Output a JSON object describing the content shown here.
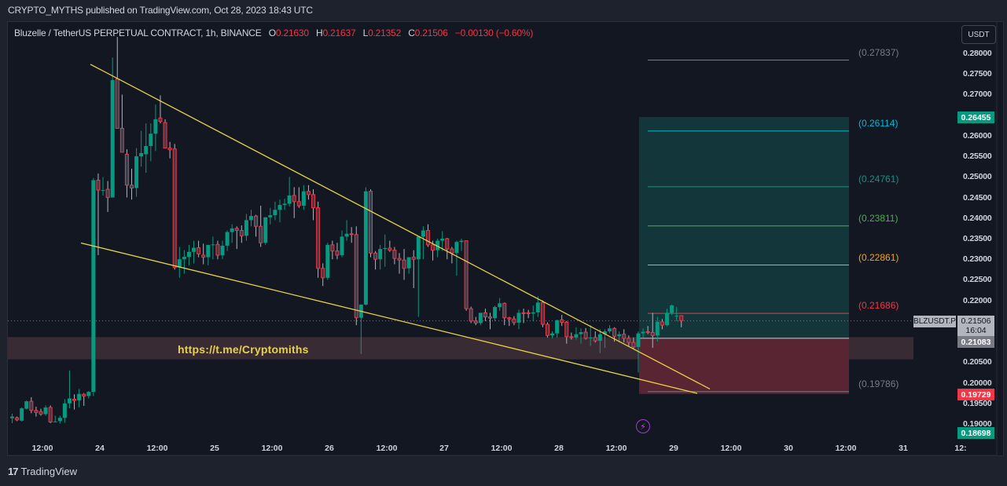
{
  "header": {
    "published": "CRYPTO_MYTHS published on TradingView.com, Oct 28, 2023 18:43 UTC"
  },
  "legend": {
    "symbol": "Bluzelle / TetherUS PERPETUAL CONTRACT, 1h, BINANCE",
    "o_label": "O",
    "o": "0.21630",
    "h_label": "H",
    "h": "0.21637",
    "l_label": "L",
    "l": "0.21352",
    "c_label": "C",
    "c": "0.21506",
    "change": "−0.00130 (−0.60%)"
  },
  "currency_button": "USDT",
  "annotation_url": "https://t.me/Cryptomiths",
  "price_badges": {
    "symbol_tag": "BLZUSDT.P",
    "last_price": "0.21506",
    "countdown": "16:04",
    "target_top": "0.26455",
    "entry": "0.21083",
    "stop": "0.19729",
    "low": "0.18698"
  },
  "footer": {
    "brand": "TradingView",
    "logo_mark": "17"
  },
  "colors": {
    "background": "#131722",
    "up": "#089981",
    "down": "#f23645",
    "trendline": "#e8d24a",
    "profit_zone": "#12363a",
    "loss_zone": "#5a2532",
    "support_zone": "#392b33"
  },
  "chart_data": {
    "type": "candlestick",
    "title": "Bluzelle / TetherUS PERPETUAL CONTRACT, 1h, BINANCE",
    "xlabel": "",
    "ylabel": "USDT",
    "ylim": [
      0.186,
      0.284
    ],
    "y_ticks": [
      "0.28000",
      "0.27500",
      "0.27000",
      "0.26500",
      "0.26000",
      "0.25500",
      "0.25000",
      "0.24500",
      "0.24000",
      "0.23500",
      "0.23000",
      "0.22500",
      "0.22000",
      "0.21500",
      "0.21000",
      "0.20500",
      "0.20000",
      "0.19500",
      "0.19000"
    ],
    "y_ticks_visible": [
      "0.28000",
      "0.27500",
      "0.27000",
      "0.26000",
      "0.25500",
      "0.25000",
      "0.24500",
      "0.24000",
      "0.23500",
      "0.23000",
      "0.22500",
      "0.22000",
      "0.20500",
      "0.20000",
      "0.19500",
      "0.19000"
    ],
    "x_ticks": [
      "12:00",
      "24",
      "12:00",
      "25",
      "12:00",
      "26",
      "12:00",
      "27",
      "12:00",
      "28",
      "12:00",
      "29",
      "12:00",
      "30",
      "12:00",
      "31",
      "12:"
    ],
    "fib_levels": [
      {
        "label": "(0.27837)",
        "value": 0.27837,
        "color": "#787b86"
      },
      {
        "label": "(0.26114)",
        "value": 0.26114,
        "color": "#00bcd4"
      },
      {
        "label": "(0.24761)",
        "value": 0.24761,
        "color": "#089981"
      },
      {
        "label": "(0.23811)",
        "value": 0.23811,
        "color": "#4caf50"
      },
      {
        "label": "(0.22861)",
        "value": 0.22861,
        "color": "#f7a21b"
      },
      {
        "label": "(0.21686)",
        "value": 0.21686,
        "color": "#f23645"
      },
      {
        "label": "(0.19786)",
        "value": 0.19786,
        "color": "#787b86"
      }
    ],
    "position": {
      "entry": 0.21083,
      "target": 0.26455,
      "stop": 0.19729
    },
    "support_zone": [
      0.2057,
      0.2111
    ],
    "trendlines": [
      {
        "name": "upper",
        "from": [
          115,
          0.27735
        ],
        "to": [
          903,
          0.1985
        ]
      },
      {
        "name": "lower",
        "from": [
          103,
          0.23396
        ],
        "to": [
          887,
          0.19744
        ]
      }
    ],
    "candles_ohlc": [
      [
        0.1914,
        0.1925,
        0.1902,
        0.1918
      ],
      [
        0.1915,
        0.1918,
        0.1907,
        0.191
      ],
      [
        0.1908,
        0.194,
        0.1906,
        0.1938
      ],
      [
        0.1937,
        0.1957,
        0.1935,
        0.1955
      ],
      [
        0.1955,
        0.1965,
        0.1926,
        0.1933
      ],
      [
        0.1933,
        0.1942,
        0.1918,
        0.1928
      ],
      [
        0.193,
        0.1937,
        0.192,
        0.1924
      ],
      [
        0.1924,
        0.1945,
        0.192,
        0.194
      ],
      [
        0.194,
        0.1945,
        0.1902,
        0.1905
      ],
      [
        0.1905,
        0.192,
        0.1904,
        0.1906
      ],
      [
        0.1907,
        0.192,
        0.1901,
        0.1915
      ],
      [
        0.1915,
        0.196,
        0.1903,
        0.195
      ],
      [
        0.195,
        0.203,
        0.1938,
        0.1962
      ],
      [
        0.196,
        0.1972,
        0.1935,
        0.1957
      ],
      [
        0.1957,
        0.1985,
        0.194,
        0.1973
      ],
      [
        0.1972,
        0.1975,
        0.1944,
        0.1968
      ],
      [
        0.1968,
        0.198,
        0.1962,
        0.1978
      ],
      [
        0.1978,
        0.2497,
        0.1968,
        0.2492
      ],
      [
        0.2492,
        0.2508,
        0.231,
        0.2468
      ],
      [
        0.2468,
        0.25,
        0.2455,
        0.2468
      ],
      [
        0.247,
        0.249,
        0.2415,
        0.245
      ],
      [
        0.245,
        0.279,
        0.245,
        0.2735
      ],
      [
        0.2738,
        0.284,
        0.271,
        0.2618
      ],
      [
        0.2618,
        0.27,
        0.258,
        0.256
      ],
      [
        0.2555,
        0.2567,
        0.245,
        0.248
      ],
      [
        0.248,
        0.252,
        0.2445,
        0.2473
      ],
      [
        0.2473,
        0.257,
        0.2452,
        0.255
      ],
      [
        0.255,
        0.2612,
        0.2525,
        0.2558
      ],
      [
        0.2555,
        0.263,
        0.251,
        0.2575
      ],
      [
        0.2575,
        0.263,
        0.2538,
        0.2605
      ],
      [
        0.2605,
        0.2676,
        0.2563,
        0.264
      ],
      [
        0.2643,
        0.2698,
        0.263,
        0.2635
      ],
      [
        0.2632,
        0.264,
        0.2575,
        0.257
      ],
      [
        0.257,
        0.2585,
        0.2545,
        0.2566
      ],
      [
        0.2568,
        0.258,
        0.2275,
        0.228
      ],
      [
        0.228,
        0.233,
        0.2255,
        0.23
      ],
      [
        0.23,
        0.2322,
        0.2265,
        0.2306
      ],
      [
        0.2306,
        0.2335,
        0.2285,
        0.2318
      ],
      [
        0.2318,
        0.2345,
        0.229,
        0.2328
      ],
      [
        0.2328,
        0.2345,
        0.2305,
        0.2313
      ],
      [
        0.231,
        0.2338,
        0.2288,
        0.2305
      ],
      [
        0.2305,
        0.233,
        0.2285,
        0.2335
      ],
      [
        0.2335,
        0.2355,
        0.23,
        0.2336
      ],
      [
        0.2336,
        0.2345,
        0.23,
        0.231
      ],
      [
        0.231,
        0.2345,
        0.23,
        0.2333
      ],
      [
        0.2333,
        0.237,
        0.232,
        0.2366
      ],
      [
        0.2366,
        0.2385,
        0.234,
        0.2375
      ],
      [
        0.2375,
        0.238,
        0.2325,
        0.237
      ],
      [
        0.237,
        0.2382,
        0.234,
        0.2357
      ],
      [
        0.2357,
        0.241,
        0.2345,
        0.2395
      ],
      [
        0.2395,
        0.242,
        0.238,
        0.2405
      ],
      [
        0.2405,
        0.2408,
        0.2355,
        0.238
      ],
      [
        0.238,
        0.243,
        0.233,
        0.234
      ],
      [
        0.234,
        0.24,
        0.2335,
        0.2402
      ],
      [
        0.2402,
        0.2425,
        0.2385,
        0.2407
      ],
      [
        0.2407,
        0.244,
        0.2395,
        0.242
      ],
      [
        0.242,
        0.2445,
        0.239,
        0.2432
      ],
      [
        0.2432,
        0.2447,
        0.242,
        0.2435
      ],
      [
        0.2435,
        0.25,
        0.2428,
        0.2455
      ],
      [
        0.2455,
        0.2475,
        0.24,
        0.244
      ],
      [
        0.244,
        0.2475,
        0.2425,
        0.243
      ],
      [
        0.243,
        0.248,
        0.242,
        0.2465
      ],
      [
        0.2465,
        0.248,
        0.2445,
        0.2457
      ],
      [
        0.2457,
        0.247,
        0.2395,
        0.2425
      ],
      [
        0.2425,
        0.244,
        0.2255,
        0.2278
      ],
      [
        0.2278,
        0.229,
        0.2235,
        0.2255
      ],
      [
        0.2255,
        0.234,
        0.225,
        0.2335
      ],
      [
        0.2335,
        0.2345,
        0.23,
        0.232
      ],
      [
        0.232,
        0.234,
        0.23,
        0.231
      ],
      [
        0.231,
        0.237,
        0.2305,
        0.2355
      ],
      [
        0.2355,
        0.2395,
        0.2345,
        0.2362
      ],
      [
        0.2362,
        0.2378,
        0.234,
        0.236
      ],
      [
        0.236,
        0.238,
        0.214,
        0.2158
      ],
      [
        0.2158,
        0.2182,
        0.207,
        0.219
      ],
      [
        0.219,
        0.2475,
        0.2188,
        0.2465
      ],
      [
        0.2465,
        0.247,
        0.2305,
        0.2315
      ],
      [
        0.2315,
        0.232,
        0.2275,
        0.23
      ],
      [
        0.23,
        0.2335,
        0.2275,
        0.2325
      ],
      [
        0.2325,
        0.236,
        0.2282,
        0.2327
      ],
      [
        0.2327,
        0.2345,
        0.2318,
        0.2322
      ],
      [
        0.2322,
        0.233,
        0.2288,
        0.2302
      ],
      [
        0.2302,
        0.2315,
        0.2265,
        0.2298
      ],
      [
        0.2298,
        0.2325,
        0.225,
        0.2278
      ],
      [
        0.2278,
        0.23,
        0.2265,
        0.2305
      ],
      [
        0.2305,
        0.2322,
        0.223,
        0.23
      ],
      [
        0.23,
        0.2345,
        0.216,
        0.2355
      ],
      [
        0.2355,
        0.238,
        0.23,
        0.237
      ],
      [
        0.237,
        0.2385,
        0.233,
        0.2335
      ],
      [
        0.2335,
        0.2345,
        0.2297,
        0.2322
      ],
      [
        0.2322,
        0.235,
        0.2305,
        0.2345
      ],
      [
        0.2345,
        0.2368,
        0.232,
        0.235
      ],
      [
        0.235,
        0.2352,
        0.23,
        0.2325
      ],
      [
        0.2325,
        0.233,
        0.229,
        0.2315
      ],
      [
        0.2315,
        0.2345,
        0.226,
        0.2342
      ],
      [
        0.2342,
        0.235,
        0.232,
        0.2345
      ],
      [
        0.2345,
        0.2345,
        0.2175,
        0.218
      ],
      [
        0.218,
        0.2185,
        0.2145,
        0.215
      ],
      [
        0.215,
        0.216,
        0.214,
        0.2145
      ],
      [
        0.2145,
        0.217,
        0.214,
        0.217
      ],
      [
        0.217,
        0.218,
        0.215,
        0.216
      ],
      [
        0.216,
        0.217,
        0.213,
        0.2157
      ],
      [
        0.2157,
        0.2187,
        0.215,
        0.2184
      ],
      [
        0.2184,
        0.2206,
        0.2175,
        0.2193
      ],
      [
        0.2193,
        0.2195,
        0.214,
        0.2158
      ],
      [
        0.2158,
        0.216,
        0.2138,
        0.2155
      ],
      [
        0.2155,
        0.2162,
        0.214,
        0.2146
      ],
      [
        0.2146,
        0.2178,
        0.213,
        0.217
      ],
      [
        0.217,
        0.218,
        0.2145,
        0.2168
      ],
      [
        0.217,
        0.2177,
        0.2157,
        0.2168
      ],
      [
        0.2168,
        0.2188,
        0.215,
        0.2171
      ],
      [
        0.2171,
        0.221,
        0.216,
        0.2195
      ],
      [
        0.2195,
        0.22,
        0.2135,
        0.2142
      ],
      [
        0.2142,
        0.2147,
        0.211,
        0.2115
      ],
      [
        0.2115,
        0.2125,
        0.2108,
        0.212
      ],
      [
        0.212,
        0.2153,
        0.211,
        0.2152
      ],
      [
        0.2153,
        0.2165,
        0.2138,
        0.2147
      ],
      [
        0.2147,
        0.215,
        0.2095,
        0.2112
      ],
      [
        0.2112,
        0.2122,
        0.2105,
        0.211
      ],
      [
        0.211,
        0.2135,
        0.2105,
        0.2118
      ],
      [
        0.2118,
        0.2132,
        0.2095,
        0.2123
      ],
      [
        0.2123,
        0.2133,
        0.2105,
        0.2108
      ],
      [
        0.2108,
        0.214,
        0.209,
        0.211
      ],
      [
        0.211,
        0.2125,
        0.2098,
        0.2102
      ],
      [
        0.2102,
        0.213,
        0.2072,
        0.2118
      ],
      [
        0.2118,
        0.213,
        0.2085,
        0.2125
      ],
      [
        0.2125,
        0.214,
        0.212,
        0.2132
      ],
      [
        0.2132,
        0.2135,
        0.21,
        0.2113
      ],
      [
        0.2113,
        0.2125,
        0.2098,
        0.2118
      ],
      [
        0.2118,
        0.213,
        0.2098,
        0.2108
      ],
      [
        0.2108,
        0.2115,
        0.2088,
        0.2098
      ],
      [
        0.2098,
        0.211,
        0.2083,
        0.2087
      ],
      [
        0.2087,
        0.2125,
        0.2025,
        0.212
      ],
      [
        0.212,
        0.2132,
        0.211,
        0.2124
      ],
      [
        0.2124,
        0.2138,
        0.2118,
        0.2122
      ],
      [
        0.2122,
        0.217,
        0.2085,
        0.2115
      ],
      [
        0.2115,
        0.216,
        0.21,
        0.2148
      ],
      [
        0.2148,
        0.2155,
        0.213,
        0.214
      ],
      [
        0.214,
        0.218,
        0.2137,
        0.217
      ],
      [
        0.217,
        0.219,
        0.2165,
        0.2188
      ],
      [
        0.2163,
        0.2184,
        0.215,
        0.2163
      ],
      [
        0.2163,
        0.2164,
        0.2135,
        0.2151
      ]
    ]
  }
}
